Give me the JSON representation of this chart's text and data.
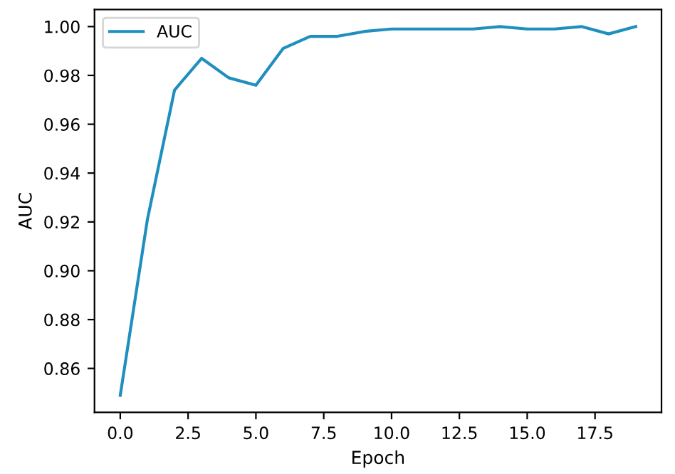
{
  "chart_data": {
    "type": "line",
    "xlabel": "Epoch",
    "ylabel": "AUC",
    "x": [
      0,
      1,
      2,
      3,
      4,
      5,
      6,
      7,
      8,
      9,
      10,
      11,
      12,
      13,
      14,
      15,
      16,
      17,
      18,
      19
    ],
    "series": [
      {
        "name": "AUC",
        "color": "#1f8fbf",
        "values": [
          0.849,
          0.921,
          0.974,
          0.987,
          0.979,
          0.976,
          0.991,
          0.996,
          0.996,
          0.998,
          0.999,
          0.999,
          0.999,
          0.999,
          1.0,
          0.999,
          0.999,
          1.0,
          0.997,
          1.0
        ]
      }
    ],
    "xlim": [
      -0.95,
      19.95
    ],
    "ylim": [
      0.842,
      1.007
    ],
    "xticks": [
      {
        "value": 0,
        "label": "0.0"
      },
      {
        "value": 2.5,
        "label": "2.5"
      },
      {
        "value": 5,
        "label": "5.0"
      },
      {
        "value": 7.5,
        "label": "7.5"
      },
      {
        "value": 10,
        "label": "10.0"
      },
      {
        "value": 12.5,
        "label": "12.5"
      },
      {
        "value": 15,
        "label": "15.0"
      },
      {
        "value": 17.5,
        "label": "17.5"
      }
    ],
    "yticks": [
      {
        "value": 0.86,
        "label": "0.86"
      },
      {
        "value": 0.88,
        "label": "0.88"
      },
      {
        "value": 0.9,
        "label": "0.90"
      },
      {
        "value": 0.92,
        "label": "0.92"
      },
      {
        "value": 0.94,
        "label": "0.94"
      },
      {
        "value": 0.96,
        "label": "0.96"
      },
      {
        "value": 0.98,
        "label": "0.98"
      },
      {
        "value": 1.0,
        "label": "1.00"
      }
    ],
    "legend": "top left",
    "grid": false
  }
}
